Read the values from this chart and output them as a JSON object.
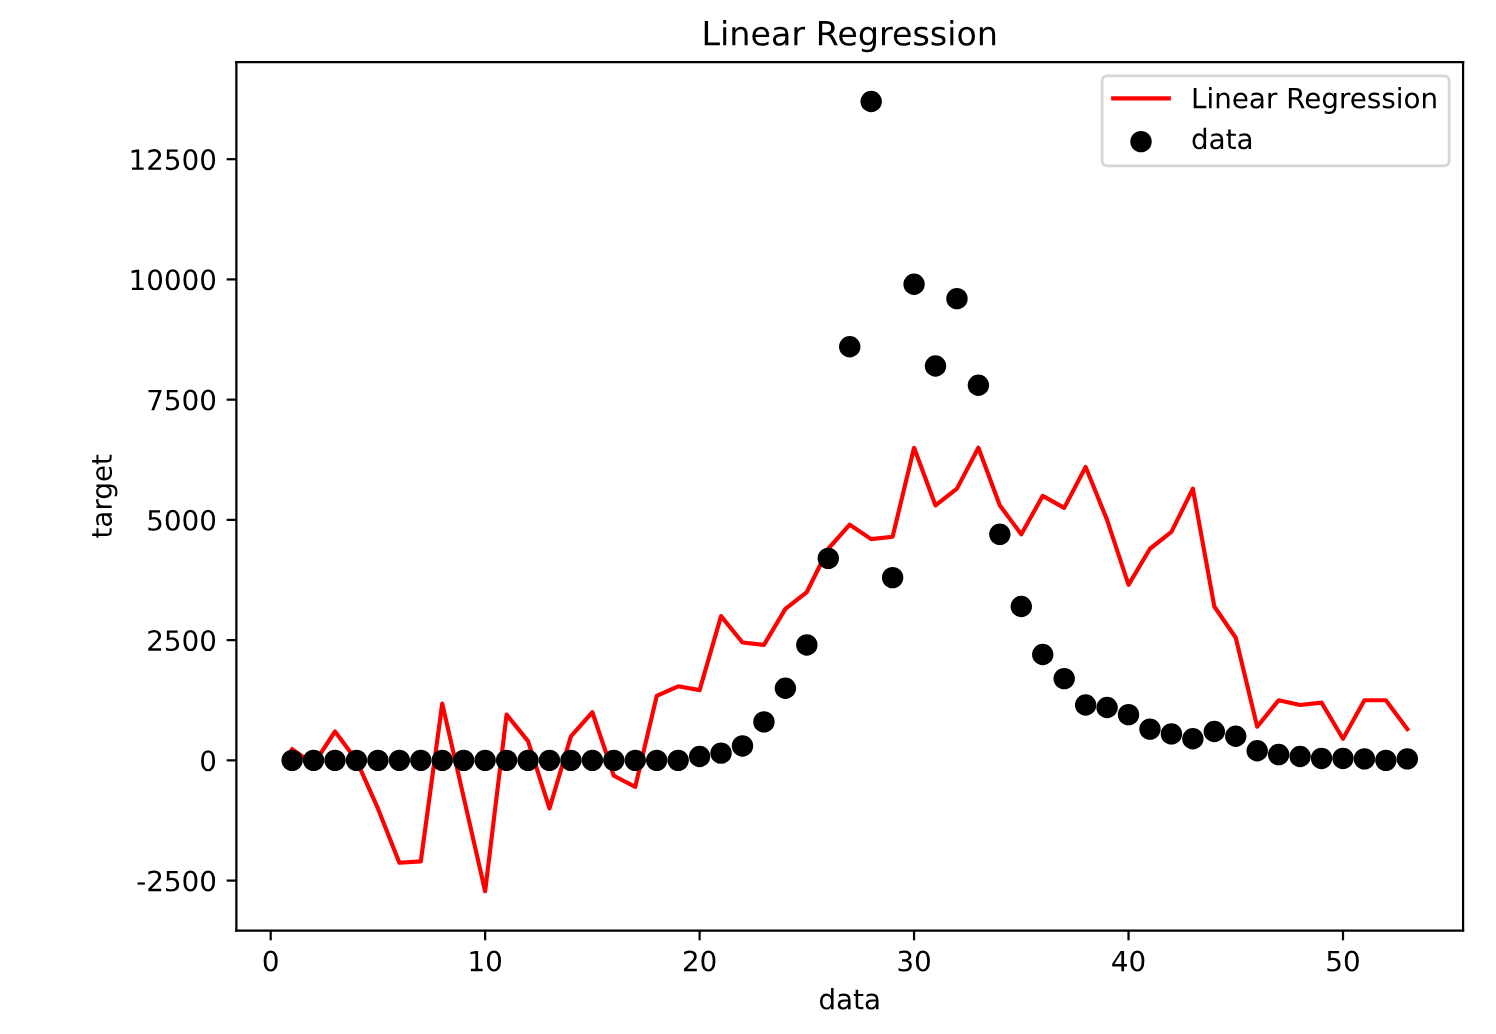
{
  "chart_data": {
    "type": "scatter",
    "title": "Linear Regression",
    "xlabel": "data",
    "ylabel": "target",
    "x": [
      1,
      2,
      3,
      4,
      5,
      6,
      7,
      8,
      9,
      10,
      11,
      12,
      13,
      14,
      15,
      16,
      17,
      18,
      19,
      20,
      21,
      22,
      23,
      24,
      25,
      26,
      27,
      28,
      29,
      30,
      31,
      32,
      33,
      34,
      35,
      36,
      37,
      38,
      39,
      40,
      41,
      42,
      43,
      44,
      45,
      46,
      47,
      48,
      49,
      50,
      51,
      52,
      53
    ],
    "series": [
      {
        "name": "Linear Regression",
        "type": "line",
        "color": "#ff0000",
        "marker": "none",
        "values": [
          230,
          -80,
          600,
          0,
          -1000,
          -2130,
          -2100,
          1180,
          -770,
          -2720,
          950,
          400,
          -1000,
          500,
          1000,
          -320,
          -550,
          1340,
          1540,
          1460,
          3000,
          2450,
          2400,
          3150,
          3500,
          4400,
          4900,
          4600,
          4650,
          6500,
          5300,
          5650,
          6500,
          5300,
          4700,
          5500,
          5250,
          6100,
          5000,
          3650,
          4400,
          4750,
          5650,
          3200,
          2550,
          700,
          1250,
          1150,
          1200,
          450,
          1250,
          1250,
          650
        ]
      },
      {
        "name": "data",
        "color": "#000000",
        "marker": "circle",
        "values": [
          0,
          0,
          0,
          0,
          0,
          0,
          0,
          0,
          0,
          0,
          0,
          0,
          0,
          0,
          0,
          0,
          0,
          0,
          0,
          80,
          150,
          300,
          800,
          1500,
          2400,
          4200,
          8600,
          13700,
          3800,
          9900,
          8200,
          9600,
          7800,
          4700,
          3200,
          2200,
          1700,
          1150,
          1100,
          950,
          650,
          550,
          450,
          600,
          500,
          200,
          120,
          80,
          40,
          40,
          30,
          0,
          30
        ]
      }
    ],
    "xlim": [
      -1.6,
      55.6
    ],
    "xticks": [
      0,
      10,
      20,
      30,
      40,
      50
    ],
    "ylim": [
      -3540,
      14520
    ],
    "yticks": [
      -2500,
      0,
      2500,
      5000,
      7500,
      10000,
      12500
    ],
    "grid": false,
    "legend": "top right"
  }
}
